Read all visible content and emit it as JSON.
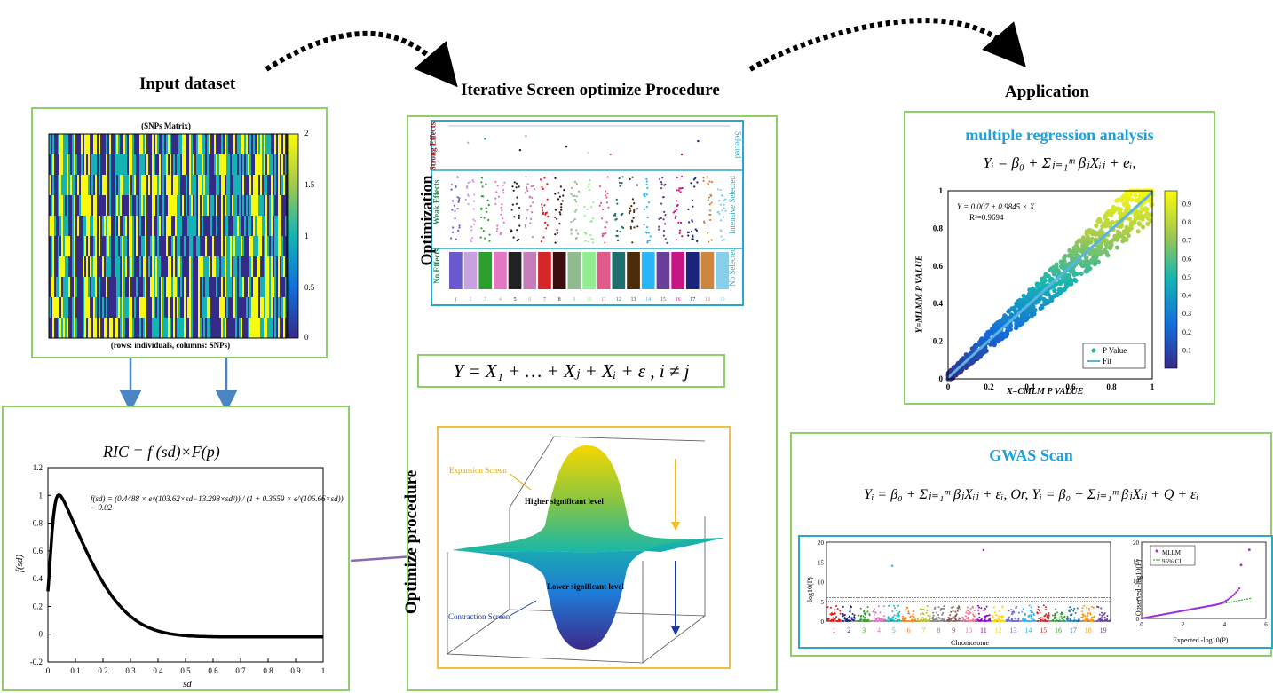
{
  "input": {
    "title": "Input dataset",
    "matrix_title": "(SNPs Matrix)",
    "matrix_caption": "(rows: individuals, columns: SNPs)",
    "colorbar_ticks": [
      "2",
      "1.5",
      "1",
      "0.5",
      "0"
    ]
  },
  "ric": {
    "equation": "RIC = f (sd)×F(p)",
    "formula": "f(sd) = (0.4488 × e^(103.62×sd−13.298×sd²)) / (1 + 0.3659 × e^(106.66×sd)) − 0.02",
    "ylabel": "f(sd)",
    "xlabel": "sd",
    "yticks": [
      "1.2",
      "1",
      "0.8",
      "0.6",
      "0.4",
      "0.2",
      "0",
      "-0.2"
    ],
    "xticks": [
      "0",
      "0.1",
      "0.2",
      "0.3",
      "0.4",
      "0.5",
      "0.6",
      "0.7",
      "0.8",
      "0.9",
      "1"
    ]
  },
  "procedure": {
    "title": "Iterative Screen optimize Procedure",
    "optimization_label": "Optimization",
    "row_labels": [
      "Strong Effects",
      "Weak Effects",
      "No Effects"
    ],
    "right_labels": [
      "Selected",
      "Intensive Selected",
      "No Selected"
    ],
    "chromosomes": [
      "1",
      "2",
      "3",
      "4",
      "5",
      "6",
      "7",
      "8",
      "9",
      "10",
      "11",
      "12",
      "13",
      "14",
      "15",
      "16",
      "17",
      "18",
      "19"
    ],
    "model": "Y = X₁ + … + Xⱼ + Xᵢ + ε , i ≠ j",
    "optimize_label": "Optimize procedure",
    "expansion": "Expansion Screen",
    "higher": "Higher significant level",
    "lower": "Lower significant level",
    "contraction": "Contraction Screen"
  },
  "application": {
    "title": "Application",
    "mra_title": "multiple regression analysis",
    "mra_eq": "Yᵢ = β₀ + Σⱼ₌₁ᵐ βⱼXᵢⱼ + eᵢ,",
    "fit_eq": "Y = 0.007 + 0.9845 × X",
    "r2": "R²=0.9694",
    "ylabel": "Y=MLMM P VALUE",
    "xlabel": "X=CMLM P VALUE",
    "xticks": [
      "0",
      "0.2",
      "0.4",
      "0.6",
      "0.8",
      "1"
    ],
    "yticks": [
      "1",
      "0.8",
      "0.6",
      "0.4",
      "0.2",
      "0"
    ],
    "cbar_ticks": [
      "0.9",
      "0.8",
      "0.7",
      "0.6",
      "0.5",
      "0.4",
      "0.3",
      "0.2",
      "0.1"
    ],
    "legend": [
      "P Value",
      "Fit"
    ],
    "gwas_title": "GWAS Scan",
    "gwas_eq": "Yᵢ = β₀ + Σⱼ₌₁ᵐ βⱼXᵢⱼ + εᵢ, Or, Yᵢ = β₀ + Σⱼ₌₁ᵐ βⱼXᵢⱼ + Q + εᵢ",
    "manhattan_ylabel": "-log10(P)",
    "manhattan_xlabel": "Chromosome",
    "manhattan_yticks": [
      "20",
      "15",
      "10",
      "5",
      "0"
    ],
    "qq_ylabel": "Observed -log10(P)",
    "qq_xlabel": "Expected -log10(P)",
    "qq_xticks": [
      "0",
      "2",
      "4",
      "6"
    ],
    "qq_yticks": [
      "20",
      "15",
      "10",
      "5",
      "0"
    ],
    "qq_legend": [
      "MLLM",
      "95% CI"
    ],
    "chrom_colors": [
      "#e41a1c",
      "#1a237e",
      "#33a02c",
      "#e377c2",
      "#17becf",
      "#ff7f0e",
      "#bcbd22",
      "#7f7f7f",
      "#8c564b",
      "#ff6f91",
      "#9400d3",
      "#ffd700",
      "#6b6ecf",
      "#29b6f6",
      "#d62728",
      "#2ca02c",
      "#1f77b4",
      "#ff9800",
      "#6a3d9a"
    ]
  }
}
